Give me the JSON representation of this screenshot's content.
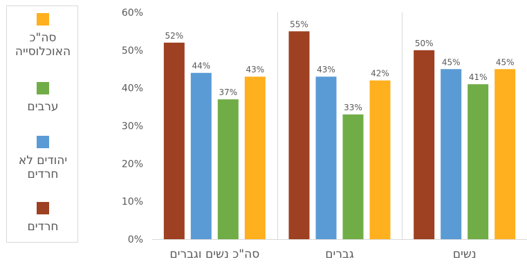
{
  "chart_data": {
    "type": "bar",
    "categories": [
      "סה\"כ נשים וגברים",
      "גברים",
      "נשים"
    ],
    "series": [
      {
        "name": "חרדים",
        "color": "#9e4022",
        "values": [
          52,
          55,
          50
        ],
        "labels": [
          "52%",
          "55%",
          "50%"
        ]
      },
      {
        "name": "יהודים לא חרדים",
        "color": "#5b9bd5",
        "values": [
          44,
          43,
          45
        ],
        "labels": [
          "44%",
          "43%",
          "45%"
        ]
      },
      {
        "name": "ערבים",
        "color": "#70ad47",
        "values": [
          37,
          33,
          41
        ],
        "labels": [
          "37%",
          "33%",
          "41%"
        ]
      },
      {
        "name": "סה\"כ האוכלוסייה",
        "color": "#ffb01f",
        "values": [
          43,
          42,
          45
        ],
        "labels": [
          "43%",
          "42%",
          "45%"
        ]
      }
    ],
    "ylim": [
      0,
      60
    ],
    "yticks": [
      "0%",
      "10%",
      "20%",
      "30%",
      "40%",
      "50%",
      "60%"
    ],
    "grid": "vertical category separators",
    "legend_position": "left"
  }
}
